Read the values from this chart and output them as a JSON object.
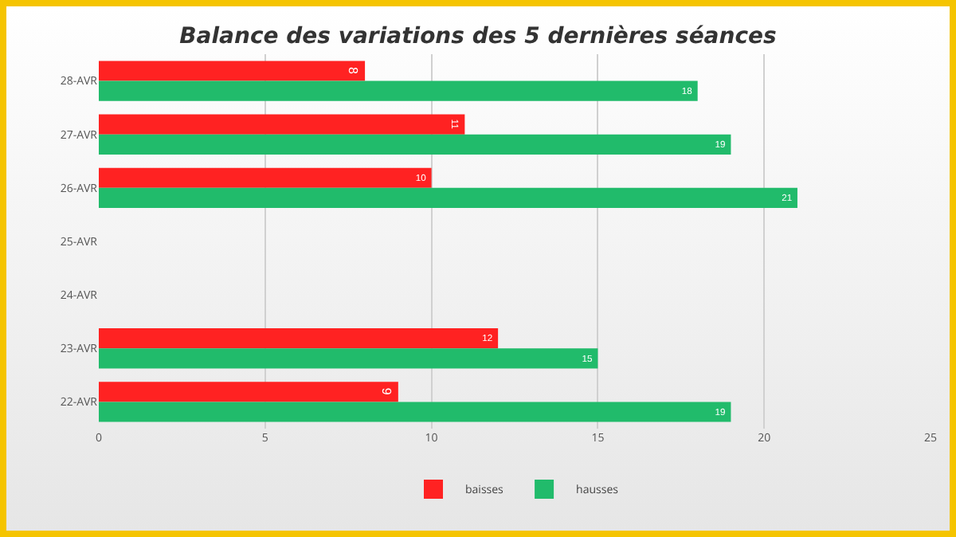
{
  "chart_data": {
    "type": "bar",
    "orientation": "horizontal",
    "title": "Balance des variations des 5 dernières séances",
    "categories": [
      "28-AVR",
      "27-AVR",
      "26-AVR",
      "25-AVR",
      "24-AVR",
      "23-AVR",
      "22-AVR"
    ],
    "series": [
      {
        "name": "baisses",
        "color": "#ff2222",
        "values": [
          8,
          11,
          10,
          null,
          null,
          12,
          9
        ]
      },
      {
        "name": "hausses",
        "color": "#21bb6b",
        "values": [
          18,
          19,
          21,
          null,
          null,
          15,
          19
        ]
      }
    ],
    "xlim": [
      0,
      25
    ],
    "xticks": [
      0,
      5,
      10,
      15,
      20,
      25
    ],
    "grid": "x",
    "legend": "bottom",
    "data_labels": true
  }
}
